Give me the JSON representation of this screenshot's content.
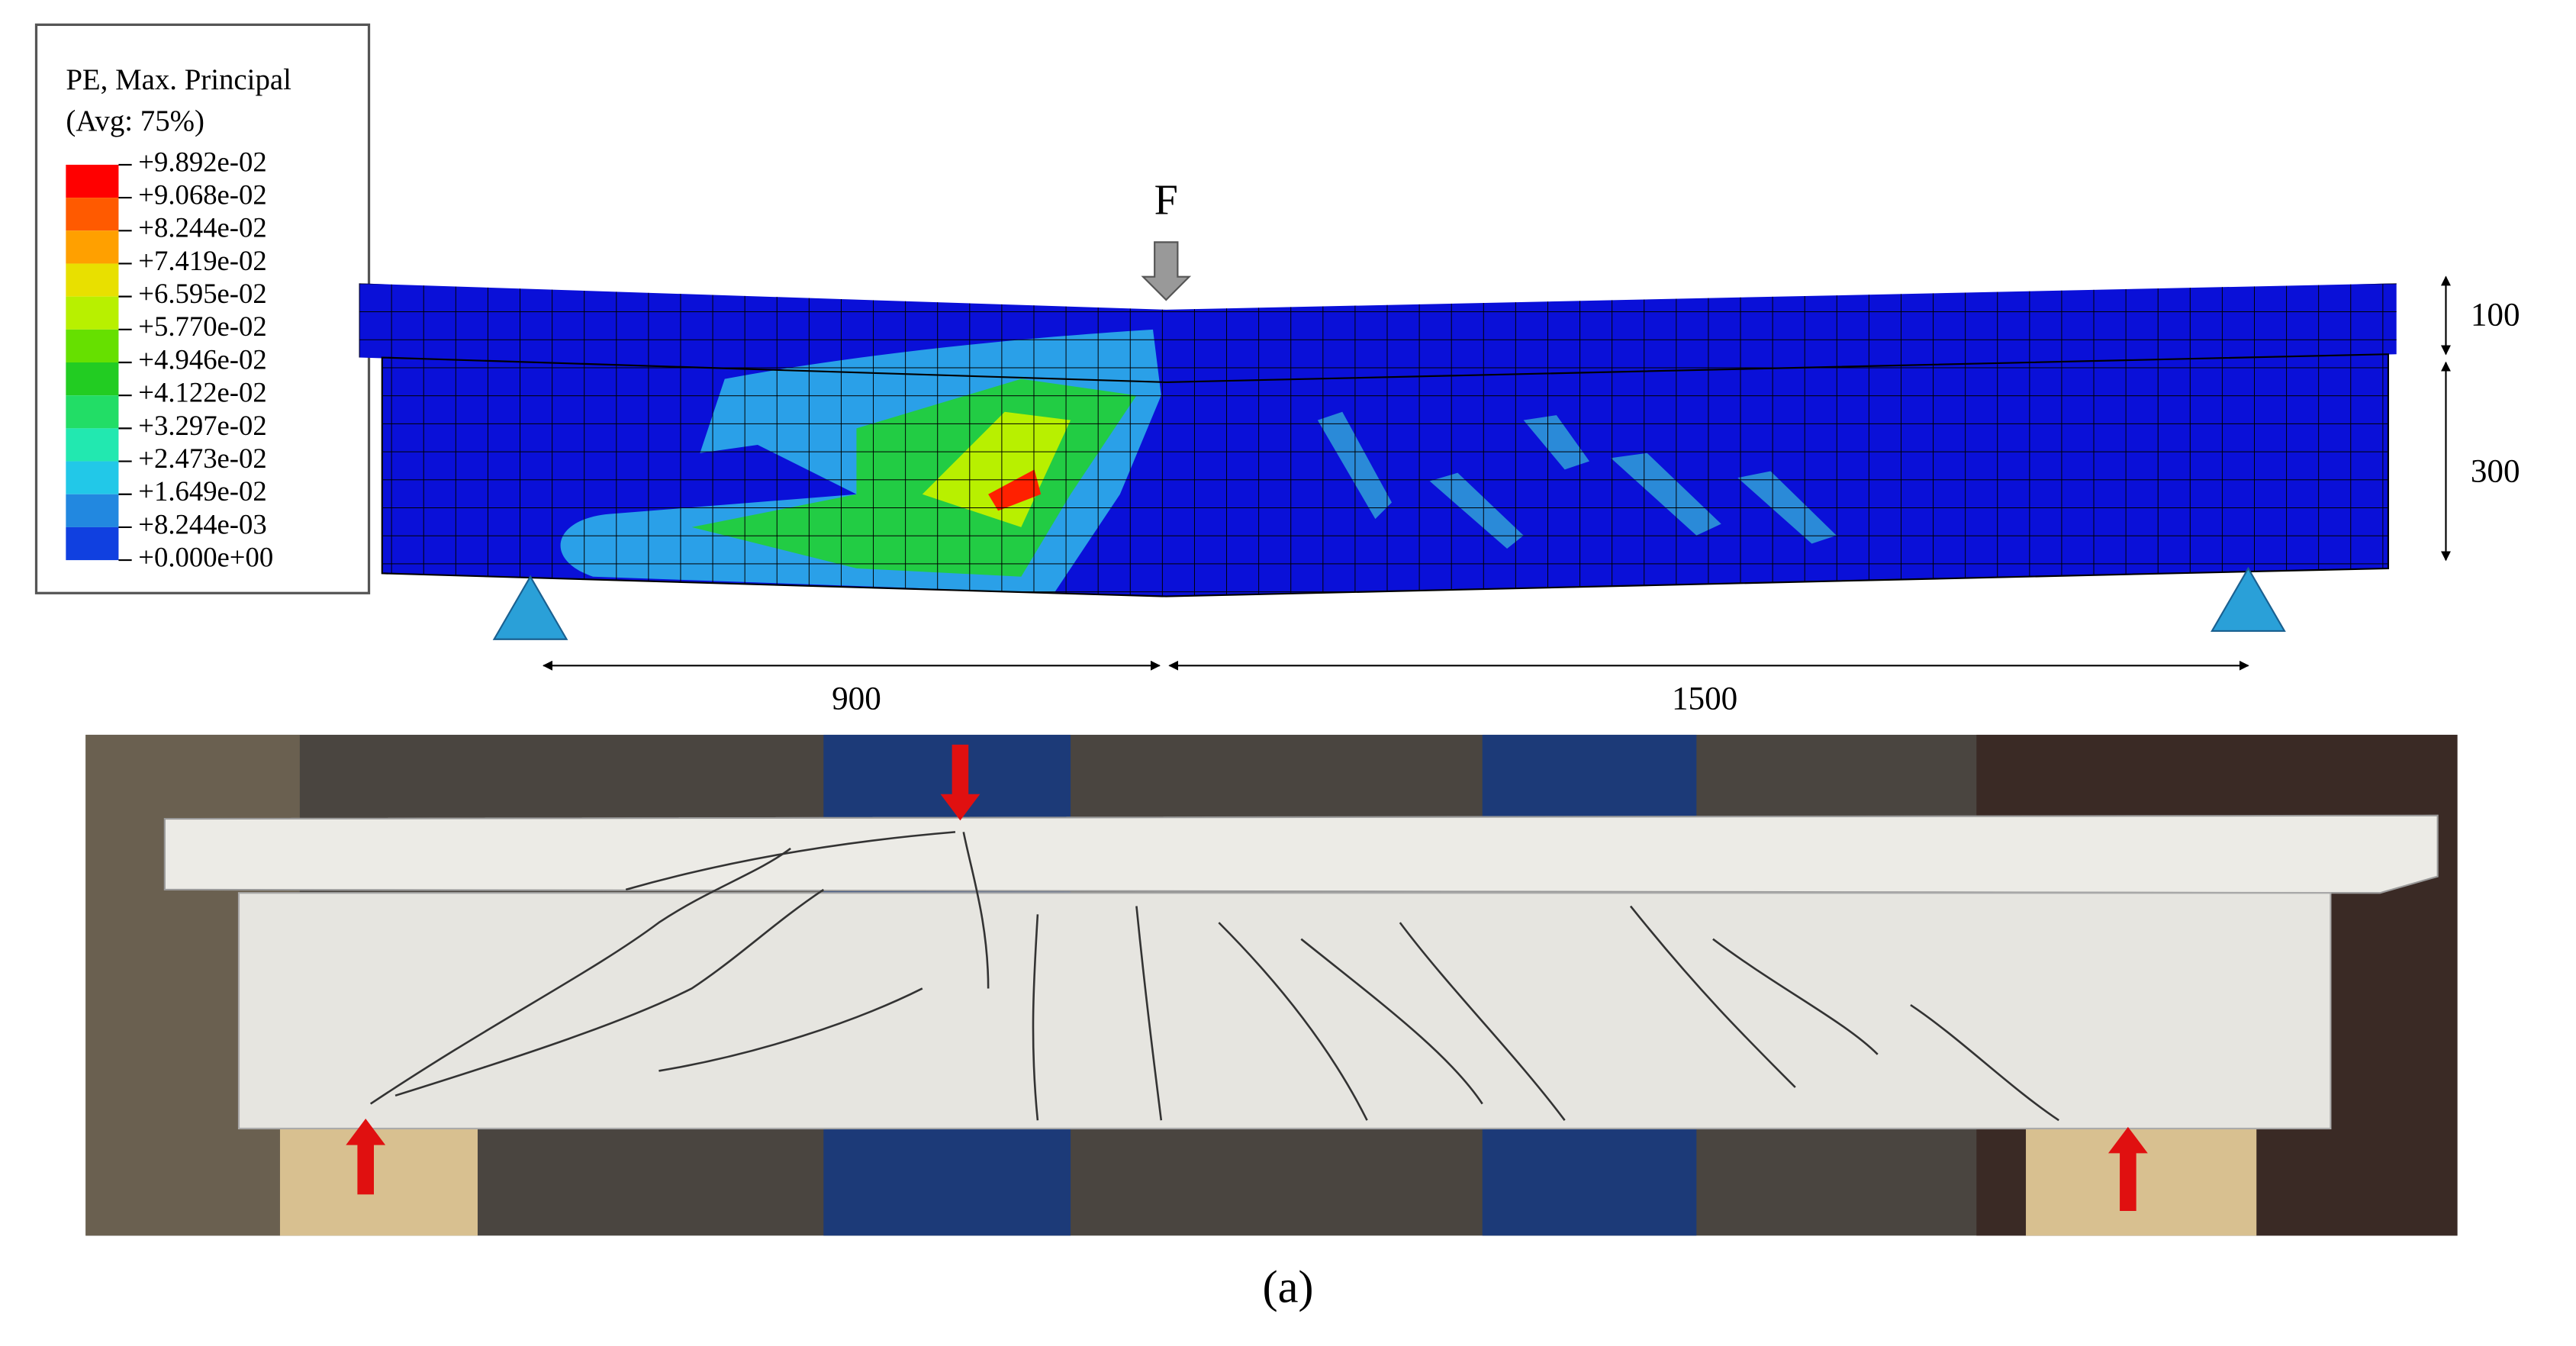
{
  "legend": {
    "title": "PE, Max. Principal",
    "subtitle": "(Avg: 75%)",
    "labels": [
      "+9.892e-02",
      "+9.068e-02",
      "+8.244e-02",
      "+7.419e-02",
      "+6.595e-02",
      "+5.770e-02",
      "+4.946e-02",
      "+4.122e-02",
      "+3.297e-02",
      "+2.473e-02",
      "+1.649e-02",
      "+8.244e-03",
      "+0.000e+00"
    ],
    "colors": [
      "#ff0000",
      "#ff5a00",
      "#ffa000",
      "#e8e000",
      "#b8f000",
      "#66e000",
      "#22cc22",
      "#22dd66",
      "#22e8b0",
      "#22c8e8",
      "#2288e0",
      "#1040e0"
    ]
  },
  "load_label": "F",
  "dimensions": {
    "flange_depth": "100",
    "web_depth": "300",
    "left_span": "900",
    "right_span": "1500"
  },
  "caption": "(a)"
}
